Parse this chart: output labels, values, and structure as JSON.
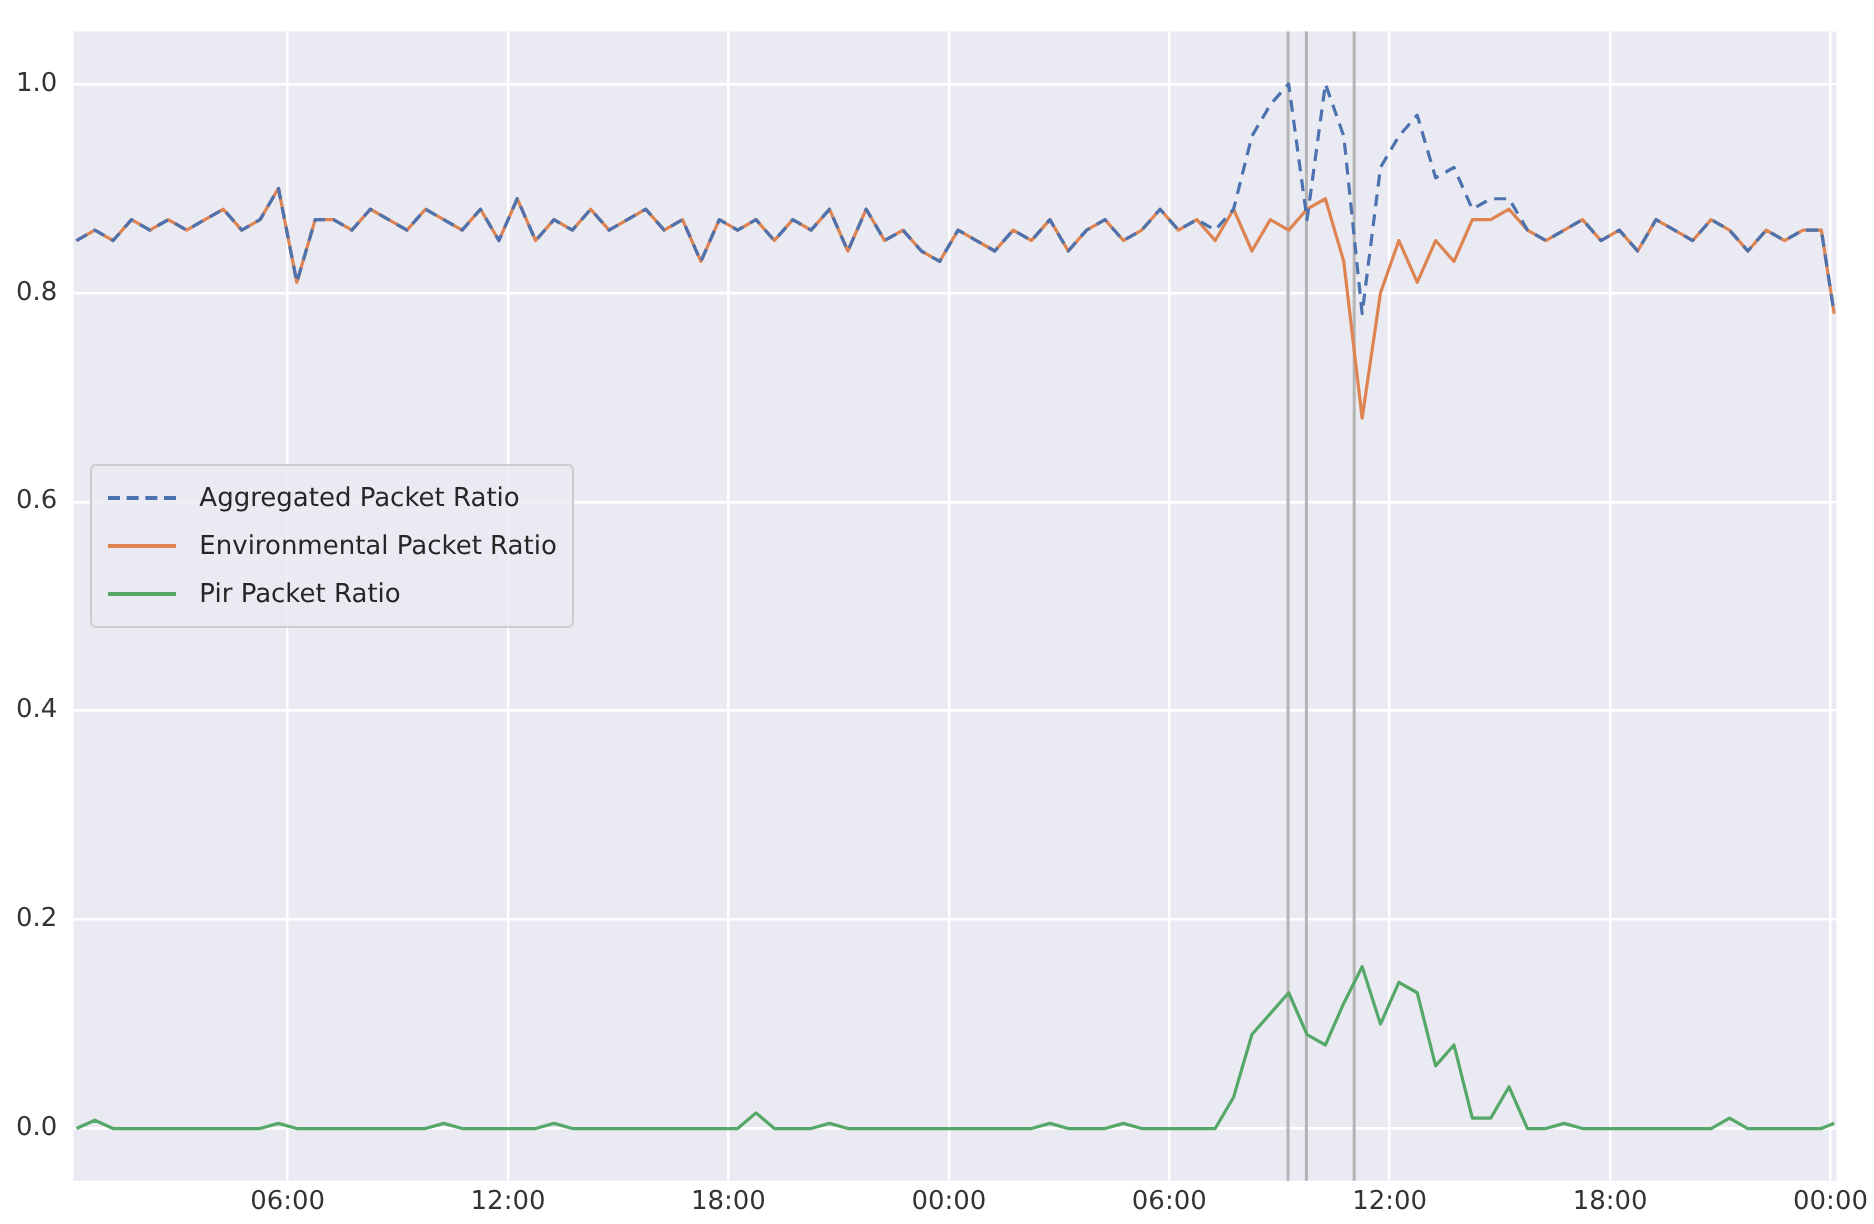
{
  "chart_data": {
    "type": "line",
    "legend": "left",
    "grid": true,
    "x": [
      "--01-01T00:15",
      "--01-01T00:45",
      "--01-01T01:15",
      "--01-01T01:45",
      "--01-01T02:15",
      "--01-01T02:45",
      "--01-01T03:15",
      "--01-01T03:45",
      "--01-01T04:15",
      "--01-01T04:45",
      "--01-01T05:15",
      "--01-01T05:45",
      "--01-01T06:15",
      "--01-01T06:45",
      "--01-01T07:15",
      "--01-01T07:45",
      "--01-01T08:15",
      "--01-01T08:45",
      "--01-01T09:15",
      "--01-01T09:45",
      "--01-01T10:15",
      "--01-01T10:45",
      "--01-01T11:15",
      "--01-01T11:45",
      "--01-01T12:15",
      "--01-01T12:45",
      "--01-01T13:15",
      "--01-01T13:45",
      "--01-01T14:15",
      "--01-01T14:45",
      "--01-01T15:15",
      "--01-01T15:45",
      "--01-01T16:15",
      "--01-01T16:45",
      "--01-01T17:15",
      "--01-01T17:45",
      "--01-01T18:15",
      "--01-01T18:45",
      "--01-01T19:15",
      "--01-01T19:45",
      "--01-01T20:15",
      "--01-01T20:45",
      "--01-01T21:15",
      "--01-01T21:45",
      "--01-01T22:15",
      "--01-01T22:45",
      "--01-01T23:15",
      "--01-01T23:45",
      "--01-02T00:15",
      "--01-02T00:45",
      "--01-02T01:15",
      "--01-02T01:45",
      "--01-02T02:15",
      "--01-02T02:45",
      "--01-02T03:15",
      "--01-02T03:45",
      "--01-02T04:15",
      "--01-02T04:45",
      "--01-02T05:15",
      "--01-02T05:45",
      "--01-02T06:15",
      "--01-02T06:45",
      "--01-02T07:15",
      "--01-02T07:45",
      "--01-02T08:15",
      "--01-02T08:45",
      "--01-02T09:15",
      "--01-02T09:45",
      "--01-02T10:15",
      "--01-02T10:45",
      "--01-02T11:15",
      "--01-02T11:45",
      "--01-02T12:15",
      "--01-02T12:45",
      "--01-02T13:15",
      "--01-02T13:45",
      "--01-02T14:15",
      "--01-02T14:45",
      "--01-02T15:15",
      "--01-02T15:45",
      "--01-02T16:15",
      "--01-02T16:45",
      "--01-02T17:15",
      "--01-02T17:45",
      "--01-02T18:15",
      "--01-02T18:45",
      "--01-02T19:15",
      "--01-02T19:45",
      "--01-02T20:15",
      "--01-02T20:45",
      "--01-02T21:15",
      "--01-02T21:45",
      "--01-02T22:15",
      "--01-02T22:45",
      "--01-02T23:15",
      "--01-02T23:45",
      "--01-03T00:06"
    ],
    "series": [
      {
        "name": "Aggregated Packet Ratio",
        "color": "#4c72b0",
        "line_style": "dashed",
        "values": [
          0.85,
          0.86,
          0.85,
          0.87,
          0.86,
          0.87,
          0.86,
          0.87,
          0.88,
          0.86,
          0.87,
          0.9,
          0.81,
          0.87,
          0.87,
          0.86,
          0.88,
          0.87,
          0.86,
          0.88,
          0.87,
          0.86,
          0.88,
          0.85,
          0.89,
          0.85,
          0.87,
          0.86,
          0.88,
          0.86,
          0.87,
          0.88,
          0.86,
          0.87,
          0.83,
          0.87,
          0.86,
          0.87,
          0.85,
          0.87,
          0.86,
          0.88,
          0.84,
          0.88,
          0.85,
          0.86,
          0.84,
          0.83,
          0.86,
          0.85,
          0.84,
          0.86,
          0.85,
          0.87,
          0.84,
          0.86,
          0.87,
          0.85,
          0.86,
          0.88,
          0.86,
          0.87,
          0.86,
          0.88,
          0.95,
          0.98,
          1.0,
          0.87,
          1.0,
          0.95,
          0.78,
          0.92,
          0.95,
          0.97,
          0.91,
          0.92,
          0.88,
          0.89,
          0.89,
          0.86,
          0.85,
          0.86,
          0.87,
          0.85,
          0.86,
          0.84,
          0.87,
          0.86,
          0.85,
          0.87,
          0.86,
          0.84,
          0.86,
          0.85,
          0.86,
          0.86,
          0.78
        ]
      },
      {
        "name": "Environmental Packet Ratio",
        "color": "#dd8452",
        "line_style": "solid",
        "values": [
          0.85,
          0.86,
          0.85,
          0.87,
          0.86,
          0.87,
          0.86,
          0.87,
          0.88,
          0.86,
          0.87,
          0.9,
          0.81,
          0.87,
          0.87,
          0.86,
          0.88,
          0.87,
          0.86,
          0.88,
          0.87,
          0.86,
          0.88,
          0.85,
          0.89,
          0.85,
          0.87,
          0.86,
          0.88,
          0.86,
          0.87,
          0.88,
          0.86,
          0.87,
          0.83,
          0.87,
          0.86,
          0.87,
          0.85,
          0.87,
          0.86,
          0.88,
          0.84,
          0.88,
          0.85,
          0.86,
          0.84,
          0.83,
          0.86,
          0.85,
          0.84,
          0.86,
          0.85,
          0.87,
          0.84,
          0.86,
          0.87,
          0.85,
          0.86,
          0.88,
          0.86,
          0.87,
          0.85,
          0.88,
          0.84,
          0.87,
          0.86,
          0.88,
          0.89,
          0.83,
          0.68,
          0.8,
          0.85,
          0.81,
          0.85,
          0.83,
          0.87,
          0.87,
          0.88,
          0.86,
          0.85,
          0.86,
          0.87,
          0.85,
          0.86,
          0.84,
          0.87,
          0.86,
          0.85,
          0.87,
          0.86,
          0.84,
          0.86,
          0.85,
          0.86,
          0.86,
          0.78
        ]
      },
      {
        "name": "Pir Packet Ratio",
        "color": "#55a868",
        "line_style": "solid",
        "values": [
          0,
          0.008,
          0,
          0,
          0,
          0,
          0,
          0,
          0,
          0,
          0,
          0.005,
          0,
          0,
          0,
          0,
          0,
          0,
          0,
          0,
          0.005,
          0,
          0,
          0,
          0,
          0,
          0.005,
          0,
          0,
          0,
          0,
          0,
          0,
          0,
          0,
          0,
          0,
          0.015,
          0,
          0,
          0,
          0.005,
          0,
          0,
          0,
          0,
          0,
          0,
          0,
          0,
          0,
          0,
          0,
          0.005,
          0,
          0,
          0,
          0.005,
          0,
          0,
          0,
          0,
          0,
          0.03,
          0.09,
          0.11,
          0.13,
          0.09,
          0.08,
          0.12,
          0.155,
          0.1,
          0.14,
          0.13,
          0.06,
          0.08,
          0.01,
          0.01,
          0.04,
          0,
          0,
          0.005,
          0,
          0,
          0,
          0,
          0,
          0,
          0,
          0,
          0.01,
          0,
          0,
          0,
          0,
          0,
          0.005
        ]
      }
    ],
    "xlim": [
      "--01-01T00:10",
      "--01-03T00:10"
    ],
    "xticks": [
      {
        "value": "--01-01T06:00",
        "label": "06:00"
      },
      {
        "value": "--01-01T12:00",
        "label": "12:00"
      },
      {
        "value": "--01-01T18:00",
        "label": "18:00"
      },
      {
        "value": "--01-02T00:00",
        "label": "00:00"
      },
      {
        "value": "--01-02T06:00",
        "label": "06:00"
      },
      {
        "value": "--01-02T12:00",
        "label": "12:00"
      },
      {
        "value": "--01-02T18:00",
        "label": "18:00"
      },
      {
        "value": "--01-03T00:00",
        "label": "00:00"
      }
    ],
    "ylim": [
      -0.05,
      1.05
    ],
    "yticks": [
      {
        "value": 0,
        "label": "0.0"
      },
      {
        "value": 0.2,
        "label": "0.2"
      },
      {
        "value": 0.4,
        "label": "0.4"
      },
      {
        "value": 0.6,
        "label": "0.6"
      },
      {
        "value": 0.8,
        "label": "0.8"
      },
      {
        "value": 1,
        "label": "1.0"
      }
    ],
    "ref_lines": [
      {
        "axis": "x",
        "value": "--01-02T09:14",
        "color": "#b4b4b4"
      },
      {
        "axis": "x",
        "value": "--01-02T09:44",
        "color": "#b4b4b4"
      },
      {
        "axis": "x",
        "value": "--01-02T11:02",
        "color": "#b4b4b4"
      }
    ]
  }
}
